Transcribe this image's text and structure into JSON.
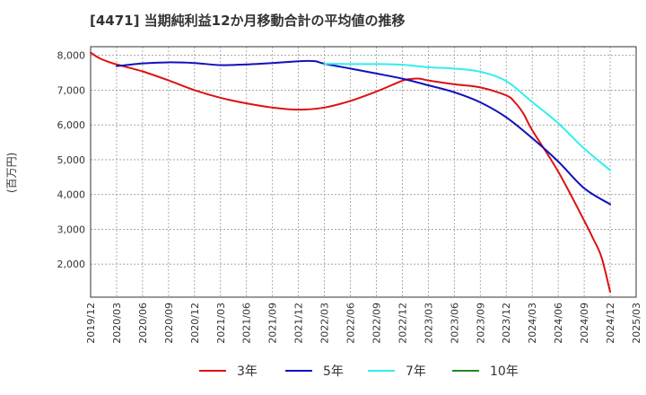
{
  "chart_data": {
    "type": "line",
    "title": "[4471]  当期純利益12か月移動合計の平均値の推移",
    "ylabel": "(百万円)",
    "xlabel": "",
    "ylim": [
      1050,
      8250
    ],
    "yticks": [
      2000,
      3000,
      4000,
      5000,
      6000,
      7000,
      8000
    ],
    "ytick_labels": [
      "2,000",
      "3,000",
      "4,000",
      "5,000",
      "6,000",
      "7,000",
      "8,000"
    ],
    "categories": [
      "2019/12",
      "2020/03",
      "2020/06",
      "2020/09",
      "2020/12",
      "2021/03",
      "2021/06",
      "2021/09",
      "2021/12",
      "2022/03",
      "2022/06",
      "2022/09",
      "2022/12",
      "2023/03",
      "2023/06",
      "2023/09",
      "2023/12",
      "2024/03",
      "2024/06",
      "2024/09",
      "2024/12",
      "2025/03"
    ],
    "grid": true,
    "legend_position": "bottom",
    "series": [
      {
        "name": "3年",
        "color": "#dd1111",
        "points": [
          [
            "2019/12",
            8080
          ],
          [
            "2020/01",
            7920
          ],
          [
            "2020/02",
            7820
          ],
          [
            "2020/03",
            7740
          ],
          [
            "2020/06",
            7540
          ],
          [
            "2020/09",
            7280
          ],
          [
            "2020/12",
            7000
          ],
          [
            "2021/03",
            6780
          ],
          [
            "2021/06",
            6620
          ],
          [
            "2021/09",
            6500
          ],
          [
            "2021/12",
            6440
          ],
          [
            "2022/03",
            6500
          ],
          [
            "2022/06",
            6690
          ],
          [
            "2022/09",
            6960
          ],
          [
            "2022/12",
            7270
          ],
          [
            "2023/01",
            7320
          ],
          [
            "2023/02",
            7330
          ],
          [
            "2023/03",
            7280
          ],
          [
            "2023/06",
            7170
          ],
          [
            "2023/09",
            7080
          ],
          [
            "2023/12",
            6850
          ],
          [
            "2024/01",
            6650
          ],
          [
            "2024/02",
            6320
          ],
          [
            "2024/03",
            5850
          ],
          [
            "2024/06",
            4660
          ],
          [
            "2024/09",
            3250
          ],
          [
            "2024/10",
            2750
          ],
          [
            "2024/11",
            2200
          ],
          [
            "2024/12",
            1200
          ]
        ]
      },
      {
        "name": "5年",
        "color": "#1111bb",
        "points": [
          [
            "2020/03",
            7690
          ],
          [
            "2020/06",
            7770
          ],
          [
            "2020/09",
            7800
          ],
          [
            "2020/12",
            7780
          ],
          [
            "2021/03",
            7720
          ],
          [
            "2021/06",
            7740
          ],
          [
            "2021/09",
            7780
          ],
          [
            "2021/12",
            7830
          ],
          [
            "2022/01",
            7840
          ],
          [
            "2022/02",
            7830
          ],
          [
            "2022/03",
            7760
          ],
          [
            "2022/06",
            7620
          ],
          [
            "2022/09",
            7480
          ],
          [
            "2022/12",
            7330
          ],
          [
            "2023/03",
            7140
          ],
          [
            "2023/06",
            6940
          ],
          [
            "2023/09",
            6650
          ],
          [
            "2023/12",
            6220
          ],
          [
            "2024/03",
            5620
          ],
          [
            "2024/06",
            4950
          ],
          [
            "2024/09",
            4180
          ],
          [
            "2024/12",
            3720
          ]
        ]
      },
      {
        "name": "7年",
        "color": "#33eeee",
        "points": [
          [
            "2022/03",
            7760
          ],
          [
            "2022/06",
            7750
          ],
          [
            "2022/09",
            7750
          ],
          [
            "2022/12",
            7730
          ],
          [
            "2023/03",
            7660
          ],
          [
            "2023/06",
            7620
          ],
          [
            "2023/09",
            7530
          ],
          [
            "2023/12",
            7260
          ],
          [
            "2024/03",
            6660
          ],
          [
            "2024/06",
            6050
          ],
          [
            "2024/09",
            5320
          ],
          [
            "2024/12",
            4700
          ]
        ]
      },
      {
        "name": "10年",
        "color": "#228822",
        "points": []
      }
    ]
  }
}
